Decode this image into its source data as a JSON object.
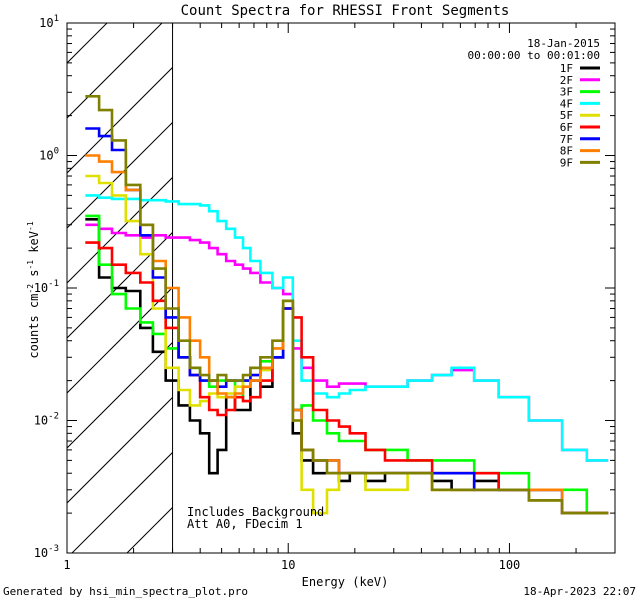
{
  "chart_data": {
    "type": "line",
    "title": "Count Spectra for RHESSI Front Segments",
    "xlabel": "Energy (keV)",
    "ylabel_base": "counts cm",
    "ylabel_parts": [
      "counts cm",
      "-2",
      " s",
      "-1",
      " keV",
      "-1"
    ],
    "xscale": "log",
    "yscale": "log",
    "xlim": [
      1,
      300
    ],
    "ylim": [
      0.001,
      10
    ],
    "x_ticks": [
      {
        "value": 1,
        "label": "1"
      },
      {
        "value": 10,
        "label": "10"
      },
      {
        "value": 100,
        "label": "100"
      }
    ],
    "y_ticks": [
      {
        "value": 0.001,
        "base": "10",
        "exp": "-3"
      },
      {
        "value": 0.01,
        "base": "10",
        "exp": "-2"
      },
      {
        "value": 0.1,
        "base": "10",
        "exp": "-1"
      },
      {
        "value": 1,
        "base": "10",
        "exp": "0"
      },
      {
        "value": 10,
        "base": "10",
        "exp": "1"
      }
    ],
    "date": "18-Jan-2015",
    "time_range": "00:00:00 to 00:01:00",
    "hatched_region": {
      "x_min": 1,
      "x_max": 3
    },
    "annotations": [
      "Includes Background",
      "Att A0, FDecim 1"
    ],
    "footer_left": "Generated by hsi_min_spectra_plot.pro",
    "footer_right": "18-Apr-2023 22:07",
    "series": [
      {
        "name": "1F",
        "color": "#000000",
        "energy": [
          1.3,
          1.5,
          1.7,
          2,
          2.3,
          2.6,
          3,
          3.4,
          3.8,
          4.2,
          4.6,
          5,
          5.5,
          6,
          6.5,
          7,
          8,
          9,
          10,
          11,
          12,
          14,
          16,
          18,
          20,
          25,
          30,
          40,
          50,
          60,
          80,
          100,
          150,
          200,
          250
        ],
        "counts": [
          0.33,
          0.12,
          0.1,
          0.095,
          0.05,
          0.033,
          0.02,
          0.013,
          0.01,
          0.008,
          0.004,
          0.006,
          0.015,
          0.012,
          0.012,
          0.02,
          0.018,
          0.03,
          0.07,
          0.008,
          0.005,
          0.004,
          0.004,
          0.0035,
          0.004,
          0.0035,
          0.004,
          0.004,
          0.0035,
          0.003,
          0.0035,
          0.003,
          0.0025,
          0.002,
          0.002
        ]
      },
      {
        "name": "2F",
        "color": "#ff00ff",
        "energy": [
          1.3,
          1.5,
          1.7,
          2,
          2.3,
          2.6,
          3,
          3.4,
          3.8,
          4.2,
          4.6,
          5,
          5.5,
          6,
          6.5,
          7,
          8,
          9,
          10,
          11,
          12,
          14,
          16,
          18,
          20,
          25,
          30,
          40,
          50,
          60,
          80,
          100,
          150,
          200,
          250
        ],
        "counts": [
          0.3,
          0.28,
          0.26,
          0.25,
          0.24,
          0.25,
          0.24,
          0.24,
          0.23,
          0.22,
          0.2,
          0.18,
          0.16,
          0.15,
          0.14,
          0.13,
          0.11,
          0.1,
          0.09,
          0.035,
          0.025,
          0.02,
          0.018,
          0.019,
          0.019,
          0.018,
          0.018,
          0.02,
          0.022,
          0.024,
          0.02,
          0.015,
          0.01,
          0.006,
          0.005
        ]
      },
      {
        "name": "3F",
        "color": "#00ff00",
        "energy": [
          1.3,
          1.5,
          1.7,
          2,
          2.3,
          2.6,
          3,
          3.4,
          3.8,
          4.2,
          4.6,
          5,
          5.5,
          6,
          6.5,
          7,
          8,
          9,
          10,
          11,
          12,
          14,
          16,
          18,
          20,
          25,
          30,
          40,
          50,
          60,
          80,
          100,
          150,
          200,
          250
        ],
        "counts": [
          0.35,
          0.15,
          0.09,
          0.07,
          0.055,
          0.045,
          0.035,
          0.03,
          0.025,
          0.02,
          0.018,
          0.02,
          0.02,
          0.015,
          0.02,
          0.025,
          0.028,
          0.03,
          0.08,
          0.012,
          0.013,
          0.01,
          0.008,
          0.007,
          0.007,
          0.006,
          0.006,
          0.005,
          0.005,
          0.005,
          0.004,
          0.004,
          0.003,
          0.003,
          0.002
        ]
      },
      {
        "name": "4F",
        "color": "#00ffff",
        "energy": [
          1.3,
          1.5,
          1.7,
          2,
          2.3,
          2.6,
          3,
          3.4,
          3.8,
          4.2,
          4.6,
          5,
          5.5,
          6,
          6.5,
          7,
          8,
          9,
          10,
          11,
          12,
          14,
          16,
          18,
          20,
          25,
          30,
          40,
          50,
          60,
          80,
          100,
          150,
          200,
          250
        ],
        "counts": [
          0.5,
          0.48,
          0.47,
          0.47,
          0.46,
          0.46,
          0.45,
          0.43,
          0.43,
          0.42,
          0.38,
          0.32,
          0.28,
          0.24,
          0.2,
          0.16,
          0.13,
          0.1,
          0.12,
          0.04,
          0.02,
          0.016,
          0.015,
          0.016,
          0.017,
          0.018,
          0.018,
          0.02,
          0.022,
          0.025,
          0.02,
          0.015,
          0.01,
          0.006,
          0.005
        ]
      },
      {
        "name": "5F",
        "color": "#e0e000",
        "energy": [
          1.3,
          1.5,
          1.7,
          2,
          2.3,
          2.6,
          3,
          3.4,
          3.8,
          4.2,
          4.6,
          5,
          5.5,
          6,
          6.5,
          7,
          8,
          9,
          10,
          11,
          12,
          14,
          16,
          18,
          20,
          25,
          30,
          40,
          50,
          60,
          80,
          100,
          150,
          200,
          250
        ],
        "counts": [
          0.7,
          0.62,
          0.5,
          0.32,
          0.18,
          0.07,
          0.025,
          0.017,
          0.013,
          0.014,
          0.016,
          0.015,
          0.016,
          0.018,
          0.02,
          0.022,
          0.024,
          0.03,
          0.07,
          0.01,
          0.003,
          0.002,
          0.003,
          0.004,
          0.004,
          0.003,
          0.003,
          0.004,
          0.003,
          0.003,
          0.003,
          0.003,
          0.0025,
          0.002,
          0.002
        ]
      },
      {
        "name": "6F",
        "color": "#ff0000",
        "energy": [
          1.3,
          1.5,
          1.7,
          2,
          2.3,
          2.6,
          3,
          3.4,
          3.8,
          4.2,
          4.6,
          5,
          5.5,
          6,
          6.5,
          7,
          8,
          9,
          10,
          11,
          12,
          14,
          16,
          18,
          20,
          25,
          30,
          40,
          50,
          60,
          80,
          100,
          150,
          200,
          250
        ],
        "counts": [
          0.22,
          0.2,
          0.15,
          0.13,
          0.11,
          0.08,
          0.05,
          0.03,
          0.022,
          0.015,
          0.012,
          0.011,
          0.012,
          0.015,
          0.014,
          0.015,
          0.02,
          0.03,
          0.07,
          0.06,
          0.03,
          0.012,
          0.01,
          0.009,
          0.008,
          0.006,
          0.005,
          0.005,
          0.004,
          0.004,
          0.004,
          0.003,
          0.003,
          0.002,
          0.002
        ]
      },
      {
        "name": "7F",
        "color": "#0000ff",
        "energy": [
          1.3,
          1.5,
          1.7,
          2,
          2.3,
          2.6,
          3,
          3.4,
          3.8,
          4.2,
          4.6,
          5,
          5.5,
          6,
          6.5,
          7,
          8,
          9,
          10,
          11,
          12,
          14,
          16,
          18,
          20,
          25,
          30,
          40,
          50,
          60,
          80,
          100,
          150,
          200,
          250
        ],
        "counts": [
          1.6,
          1.4,
          1.1,
          0.55,
          0.25,
          0.12,
          0.06,
          0.03,
          0.022,
          0.02,
          0.02,
          0.018,
          0.02,
          0.02,
          0.02,
          0.022,
          0.025,
          0.03,
          0.07,
          0.012,
          0.006,
          0.005,
          0.005,
          0.004,
          0.004,
          0.004,
          0.004,
          0.004,
          0.004,
          0.004,
          0.003,
          0.003,
          0.003,
          0.002,
          0.002
        ]
      },
      {
        "name": "8F",
        "color": "#ff8000",
        "energy": [
          1.3,
          1.5,
          1.7,
          2,
          2.3,
          2.6,
          3,
          3.4,
          3.8,
          4.2,
          4.6,
          5,
          5.5,
          6,
          6.5,
          7,
          8,
          9,
          10,
          11,
          12,
          14,
          16,
          18,
          20,
          25,
          30,
          40,
          50,
          60,
          80,
          100,
          150,
          200,
          250
        ],
        "counts": [
          1,
          0.9,
          0.75,
          0.55,
          0.3,
          0.16,
          0.1,
          0.06,
          0.04,
          0.03,
          0.02,
          0.016,
          0.015,
          0.016,
          0.018,
          0.02,
          0.025,
          0.035,
          0.08,
          0.012,
          0.006,
          0.005,
          0.005,
          0.004,
          0.004,
          0.004,
          0.004,
          0.004,
          0.003,
          0.003,
          0.003,
          0.003,
          0.003,
          0.002,
          0.002
        ]
      },
      {
        "name": "9F",
        "color": "#808000",
        "energy": [
          1.3,
          1.5,
          1.7,
          2,
          2.3,
          2.6,
          3,
          3.4,
          3.8,
          4.2,
          4.6,
          5,
          5.5,
          6,
          6.5,
          7,
          8,
          9,
          10,
          11,
          12,
          14,
          16,
          18,
          20,
          25,
          30,
          40,
          50,
          60,
          80,
          100,
          150,
          200,
          250
        ],
        "counts": [
          2.8,
          2.2,
          1.3,
          0.6,
          0.3,
          0.14,
          0.07,
          0.04,
          0.025,
          0.022,
          0.02,
          0.022,
          0.02,
          0.02,
          0.022,
          0.025,
          0.03,
          0.04,
          0.08,
          0.01,
          0.006,
          0.005,
          0.004,
          0.004,
          0.004,
          0.004,
          0.004,
          0.004,
          0.003,
          0.003,
          0.003,
          0.003,
          0.0025,
          0.002,
          0.002
        ]
      }
    ]
  }
}
